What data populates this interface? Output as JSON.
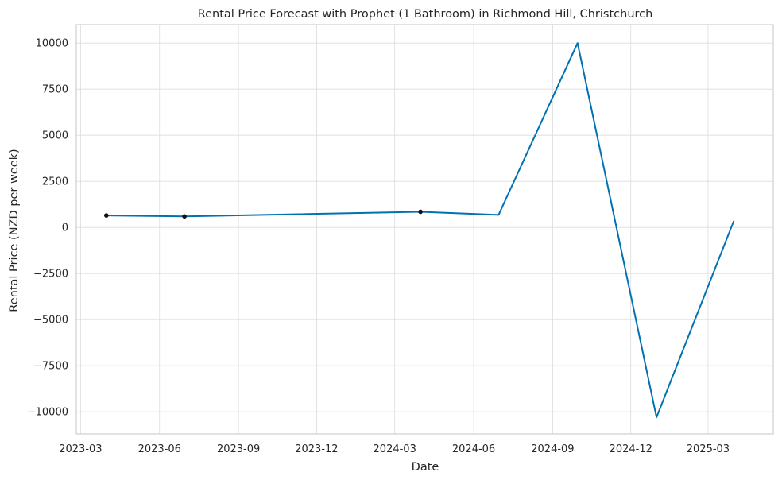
{
  "chart_data": {
    "type": "line",
    "title": "Rental Price Forecast with Prophet (1 Bathroom) in Richmond Hill, Christchurch",
    "xlabel": "Date",
    "ylabel": "Rental Price (NZD per week)",
    "x_type": "date",
    "xlim": [
      "2023-02-24",
      "2025-05-16"
    ],
    "ylim": [
      -11200,
      11000
    ],
    "grid": true,
    "x_ticks": [
      {
        "value": "2023-03-01",
        "label": "2023-03"
      },
      {
        "value": "2023-06-01",
        "label": "2023-06"
      },
      {
        "value": "2023-09-01",
        "label": "2023-09"
      },
      {
        "value": "2023-12-01",
        "label": "2023-12"
      },
      {
        "value": "2024-03-01",
        "label": "2024-03"
      },
      {
        "value": "2024-06-01",
        "label": "2024-06"
      },
      {
        "value": "2024-09-01",
        "label": "2024-09"
      },
      {
        "value": "2024-12-01",
        "label": "2024-12"
      },
      {
        "value": "2025-03-01",
        "label": "2025-03"
      }
    ],
    "y_ticks": [
      {
        "value": 10000,
        "label": "10000"
      },
      {
        "value": 7500,
        "label": "7500"
      },
      {
        "value": 5000,
        "label": "5000"
      },
      {
        "value": 2500,
        "label": "2500"
      },
      {
        "value": 0,
        "label": "0"
      },
      {
        "value": -2500,
        "label": "−2500"
      },
      {
        "value": -5000,
        "label": "−5000"
      },
      {
        "value": -7500,
        "label": "−7500"
      },
      {
        "value": -10000,
        "label": "−10000"
      }
    ],
    "series": [
      {
        "kind": "forecast",
        "color": "#0072b2",
        "points": [
          {
            "x": "2023-03-31",
            "y": 650
          },
          {
            "x": "2023-06-30",
            "y": 600
          },
          {
            "x": "2024-03-31",
            "y": 850
          },
          {
            "x": "2024-06-30",
            "y": 680
          },
          {
            "x": "2024-09-30",
            "y": 10000
          },
          {
            "x": "2024-12-31",
            "y": -10300
          },
          {
            "x": "2025-03-31",
            "y": 350
          }
        ]
      },
      {
        "kind": "observed",
        "color": "#111111",
        "points": [
          {
            "x": "2023-03-31",
            "y": 650
          },
          {
            "x": "2023-06-30",
            "y": 600
          },
          {
            "x": "2024-03-31",
            "y": 850
          }
        ]
      }
    ]
  }
}
